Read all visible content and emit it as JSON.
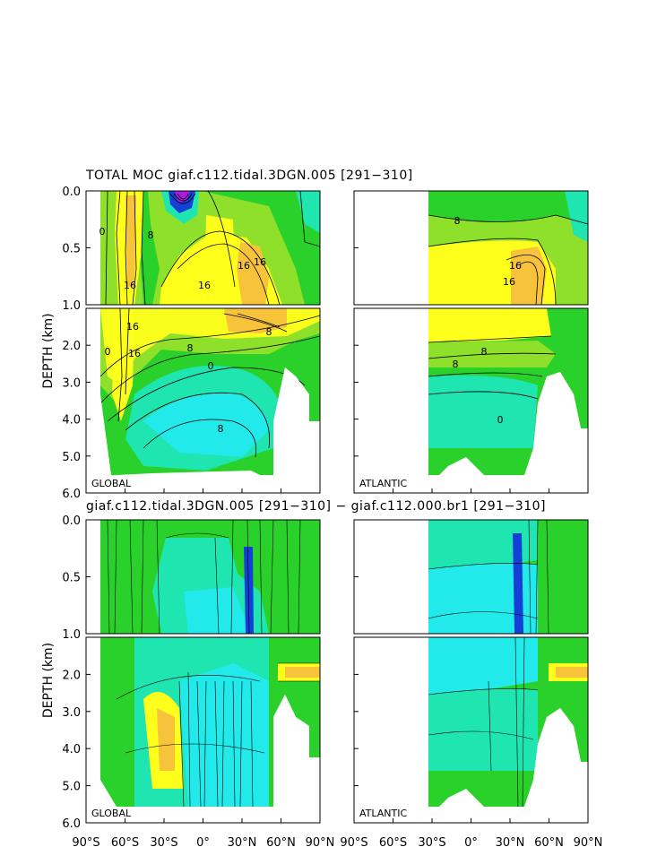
{
  "titles": {
    "top": "TOTAL MOC giaf.c112.tidal.3DGN.005 [291−310]",
    "bottom": "giaf.c112.tidal.3DGN.005 [291−310] − giaf.c112.000.br1 [291−310]"
  },
  "chart_data": {
    "type": "contour",
    "ylabel": "DEPTH (km)",
    "ylim": [
      0.0,
      6.0
    ],
    "y_ticks_upper": [
      "0.0",
      "0.5",
      "1.0"
    ],
    "y_ticks_lower": [
      "2.0",
      "3.0",
      "4.0",
      "5.0",
      "6.0"
    ],
    "x_ticks": [
      "90°S",
      "60°S",
      "30°S",
      "0°",
      "30°N",
      "60°N",
      "90°N"
    ],
    "x_range": [
      -90,
      90
    ],
    "panel_labels": [
      "GLOBAL",
      "ATLANTIC",
      "GLOBAL",
      "ATLANTIC"
    ],
    "contour_labels_top": [
      "0",
      "16",
      "8",
      "16",
      "16",
      "16",
      "8",
      "0",
      "16",
      "16",
      "8",
      "8",
      "0"
    ],
    "contour_labels_atl": [
      "8",
      "16",
      "16",
      "8",
      "8",
      "0"
    ],
    "colors": {
      "green": "#2bd12b",
      "ltgreen": "#8ee02a",
      "teal": "#1fe5b0",
      "cyan": "#22eaea",
      "yellow": "#ffff1c",
      "orange": "#f7c33a",
      "blue": "#1540d8",
      "purple": "#b01ae0"
    }
  }
}
